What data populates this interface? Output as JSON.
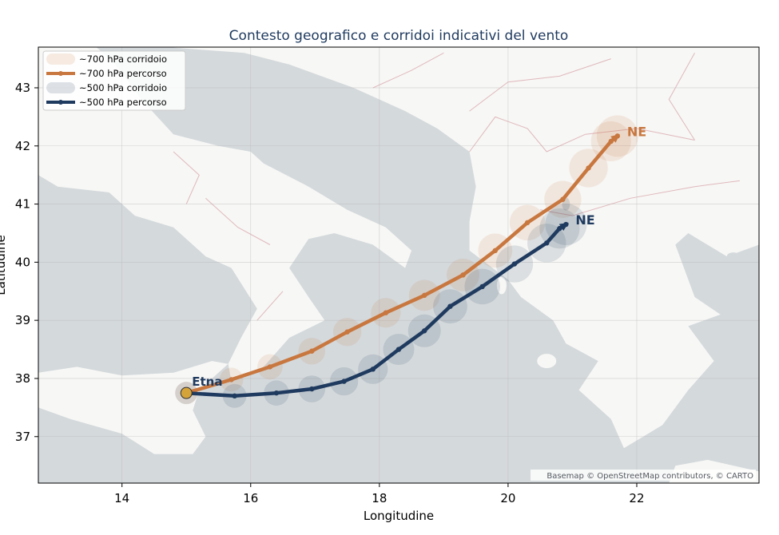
{
  "title": "Contesto geografico e corridoi indicativi del vento",
  "xlabel": "Longitudine",
  "ylabel": "Latitudine",
  "attribution": "Basemap © OpenStreetMap contributors, © CARTO",
  "colors": {
    "orange": "#c8773f",
    "navy": "#1f3a5f",
    "sea": "#d4d9dc",
    "land": "#f7f7f5",
    "border": "#e0b8bd",
    "etna": "#d4a33a"
  },
  "chart_data": {
    "type": "line",
    "xlim": [
      12.7,
      23.9
    ],
    "ylim": [
      36.2,
      43.7
    ],
    "xticks": [
      14,
      16,
      18,
      20,
      22
    ],
    "yticks": [
      37,
      38,
      39,
      40,
      41,
      42,
      43
    ],
    "xtick_labels": [
      "14",
      "16",
      "18",
      "20",
      "22"
    ],
    "ytick_labels": [
      "37",
      "38",
      "39",
      "40",
      "41",
      "42",
      "43"
    ],
    "grid": true,
    "legend_placement": "top-left",
    "legend": [
      {
        "label": "~700 hPa corridoio",
        "kind": "band",
        "color": "#c8773f"
      },
      {
        "label": "~700 hPa percorso",
        "kind": "line",
        "color": "#c8773f"
      },
      {
        "label": "~500 hPa corridoio",
        "kind": "band",
        "color": "#1f3a5f"
      },
      {
        "label": "~500 hPa percorso",
        "kind": "line",
        "color": "#1f3a5f"
      }
    ],
    "series": [
      {
        "level": "700",
        "color": "#c8773f",
        "end_label": "NE",
        "points": [
          [
            15.0,
            37.75
          ],
          [
            15.7,
            37.98
          ],
          [
            16.3,
            38.2
          ],
          [
            16.95,
            38.47
          ],
          [
            17.5,
            38.8
          ],
          [
            18.1,
            39.13
          ],
          [
            18.7,
            39.43
          ],
          [
            19.3,
            39.78
          ],
          [
            19.8,
            40.2
          ],
          [
            20.3,
            40.68
          ],
          [
            20.85,
            41.08
          ],
          [
            21.25,
            41.62
          ],
          [
            21.6,
            42.08
          ],
          [
            21.7,
            42.17
          ]
        ]
      },
      {
        "level": "500",
        "color": "#1f3a5f",
        "end_label": "NE",
        "points": [
          [
            15.0,
            37.75
          ],
          [
            15.75,
            37.7
          ],
          [
            16.4,
            37.75
          ],
          [
            16.95,
            37.82
          ],
          [
            17.45,
            37.95
          ],
          [
            17.9,
            38.16
          ],
          [
            18.3,
            38.5
          ],
          [
            18.7,
            38.82
          ],
          [
            19.1,
            39.24
          ],
          [
            19.6,
            39.58
          ],
          [
            20.1,
            39.97
          ],
          [
            20.6,
            40.33
          ],
          [
            20.8,
            40.58
          ],
          [
            20.9,
            40.65
          ]
        ]
      }
    ],
    "annotations": [
      {
        "text": "Etna",
        "lon": 15.0,
        "lat": 37.75
      }
    ]
  }
}
